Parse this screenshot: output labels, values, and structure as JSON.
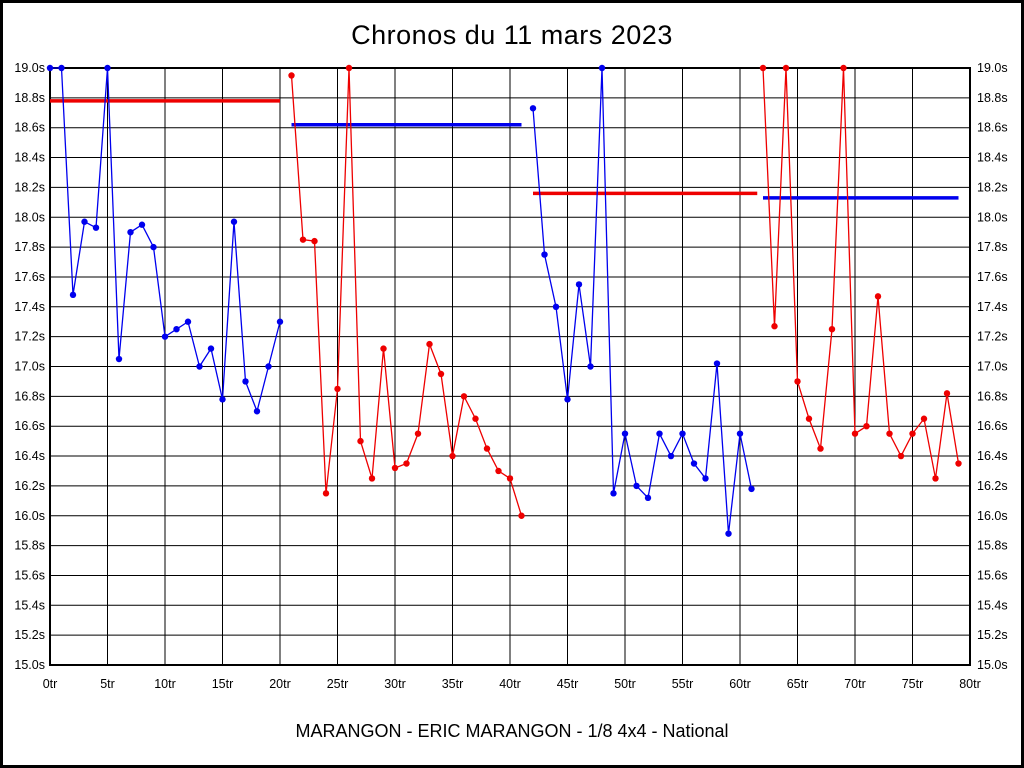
{
  "page": {
    "title": "Chronos du 11 mars 2023",
    "subtitle": "MARANGON - ERIC MARANGON - 1/8 4x4 - National"
  },
  "chart_data": {
    "type": "line",
    "title": "Chronos du 11 mars 2023",
    "xlabel": "",
    "ylabel": "",
    "x_unit": "tr",
    "y_unit": "s",
    "xlim": [
      0,
      80
    ],
    "ylim": [
      15.0,
      19.0
    ],
    "grid": true,
    "x_ticks": {
      "min": 0,
      "max": 80,
      "step": 5,
      "suffix": "tr"
    },
    "y_ticks": {
      "min": 15.0,
      "max": 19.0,
      "step": 0.2,
      "decimals": 1,
      "suffix": "s"
    },
    "colors": {
      "blue_run": "#0000ee",
      "red_run": "#ee0000",
      "grid": "#000000",
      "frame": "#000000"
    },
    "series": [
      {
        "name": "run-1",
        "color": "#0000ee",
        "start_lap": 0,
        "values": [
          19.0,
          19.0,
          17.48,
          17.97,
          17.93,
          19.0,
          17.05,
          17.9,
          17.95,
          17.8,
          17.2,
          17.25,
          17.3,
          17.0,
          17.12,
          16.78,
          17.97,
          16.9,
          16.7,
          17.0,
          17.3
        ]
      },
      {
        "name": "run-2",
        "color": "#ee0000",
        "start_lap": 21,
        "values": [
          18.95,
          17.85,
          17.84,
          16.15,
          16.85,
          19.0,
          16.5,
          16.25,
          17.12,
          16.32,
          16.35,
          16.55,
          17.15,
          16.95,
          16.4,
          16.8,
          16.65,
          16.45,
          16.3,
          16.25,
          16.0
        ]
      },
      {
        "name": "run-3",
        "color": "#0000ee",
        "start_lap": 42,
        "values": [
          18.73,
          17.75,
          17.4,
          16.78,
          17.55,
          17.0,
          19.0,
          16.15,
          16.55,
          16.2,
          16.12,
          16.55,
          16.4,
          16.55,
          16.35,
          16.25,
          17.02,
          15.88,
          16.55,
          16.18
        ]
      },
      {
        "name": "run-4",
        "color": "#ee0000",
        "start_lap": 62,
        "values": [
          19.0,
          17.27,
          19.0,
          16.9,
          16.65,
          16.45,
          17.25,
          19.0,
          16.55,
          16.6,
          17.47,
          16.55,
          16.4,
          16.55,
          16.65,
          16.25,
          16.82,
          16.35
        ]
      }
    ],
    "reference_lines": [
      {
        "name": "avg-line-run-1",
        "color": "#ee0000",
        "value": 18.78,
        "x_start": 0,
        "x_end": 20
      },
      {
        "name": "avg-line-run-2",
        "color": "#0000ee",
        "value": 18.62,
        "x_start": 21,
        "x_end": 41
      },
      {
        "name": "avg-line-run-3",
        "color": "#ee0000",
        "value": 18.16,
        "x_start": 42,
        "x_end": 61.5
      },
      {
        "name": "avg-line-run-4",
        "color": "#0000ee",
        "value": 18.13,
        "x_start": 62,
        "x_end": 79
      }
    ],
    "legend_position": "none"
  }
}
